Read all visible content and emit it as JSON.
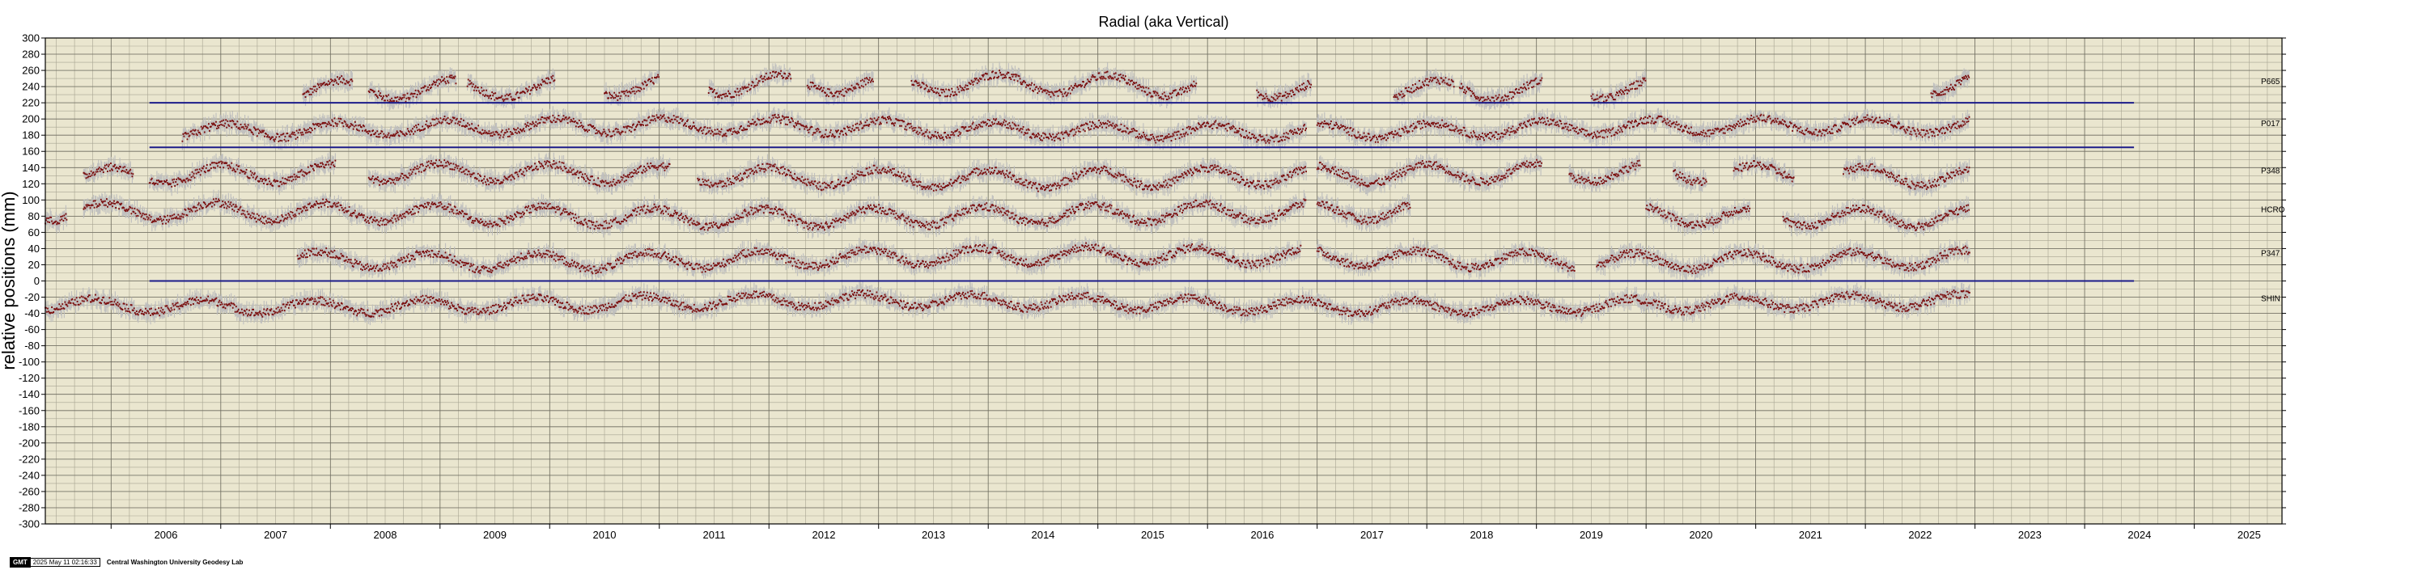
{
  "chart_data": {
    "type": "scatter",
    "title": "Radial (aka Vertical)",
    "ylabel": "relative positions (mm)",
    "xlabel": "",
    "xlim": [
      2005.4,
      2025.8
    ],
    "ylim": [
      -300,
      300
    ],
    "y_tick_step": 20,
    "x_ticks": [
      "2006",
      "2007",
      "2008",
      "2009",
      "2010",
      "2011",
      "2012",
      "2013",
      "2014",
      "2015",
      "2016",
      "2017",
      "2018",
      "2019",
      "2020",
      "2021",
      "2022",
      "2023",
      "2024",
      "2025"
    ],
    "grid": true,
    "background_color": "#eae6cf",
    "point_color": "#7a0c0c",
    "error_band_color": "#bdbdbd",
    "reference_line_color": "#1c1c8a",
    "reference_lines": [
      {
        "y": 220,
        "x_start": 2006.35,
        "x_end": 2024.45
      },
      {
        "y": 165,
        "x_start": 2006.35,
        "x_end": 2024.45
      },
      {
        "y": 0,
        "x_start": 2006.35,
        "x_end": 2024.45
      }
    ],
    "series": [
      {
        "name": "P665",
        "offset": 240,
        "amplitude": 12,
        "segments": [
          [
            2007.75,
            2008.2
          ],
          [
            2008.35,
            2009.15
          ],
          [
            2009.25,
            2010.05
          ],
          [
            2010.5,
            2011.0
          ],
          [
            2011.45,
            2012.2
          ],
          [
            2012.35,
            2012.95
          ],
          [
            2013.3,
            2014.3
          ],
          [
            2014.3,
            2015.9
          ],
          [
            2016.45,
            2016.95
          ],
          [
            2017.7,
            2018.25
          ],
          [
            2018.3,
            2019.05
          ],
          [
            2019.5,
            2020.0
          ],
          [
            2022.6,
            2022.95
          ]
        ]
      },
      {
        "name": "P017",
        "offset": 188,
        "amplitude": 9,
        "segments": [
          [
            2006.65,
            2010.0
          ],
          [
            2010.0,
            2016.9
          ],
          [
            2017.0,
            2022.95
          ]
        ]
      },
      {
        "name": "P348",
        "offset": 130,
        "amplitude": 11,
        "segments": [
          [
            2005.75,
            2006.2
          ],
          [
            2006.35,
            2008.05
          ],
          [
            2008.35,
            2011.1
          ],
          [
            2011.35,
            2016.9
          ],
          [
            2017.0,
            2019.05
          ],
          [
            2019.3,
            2019.95
          ],
          [
            2020.25,
            2020.55
          ],
          [
            2020.8,
            2021.35
          ],
          [
            2021.8,
            2022.95
          ]
        ]
      },
      {
        "name": "HCRO",
        "offset": 82,
        "amplitude": 11,
        "segments": [
          [
            2005.4,
            2005.6
          ],
          [
            2005.75,
            2016.9
          ],
          [
            2017.0,
            2017.85
          ],
          [
            2020.0,
            2020.95
          ],
          [
            2021.25,
            2022.95
          ]
        ]
      },
      {
        "name": "P347",
        "offset": 28,
        "amplitude": 10,
        "segments": [
          [
            2007.7,
            2016.85
          ],
          [
            2017.0,
            2019.35
          ],
          [
            2019.55,
            2019.8
          ],
          [
            2019.8,
            2022.95
          ]
        ]
      },
      {
        "name": "SHIN",
        "offset": -28,
        "amplitude": 8,
        "segments": [
          [
            2005.4,
            2022.95
          ]
        ]
      }
    ]
  },
  "footer": {
    "logo": "GMT",
    "timestamp": "2025 May 11 02:16:33",
    "lab": "Central Washington University Geodesy Lab"
  }
}
